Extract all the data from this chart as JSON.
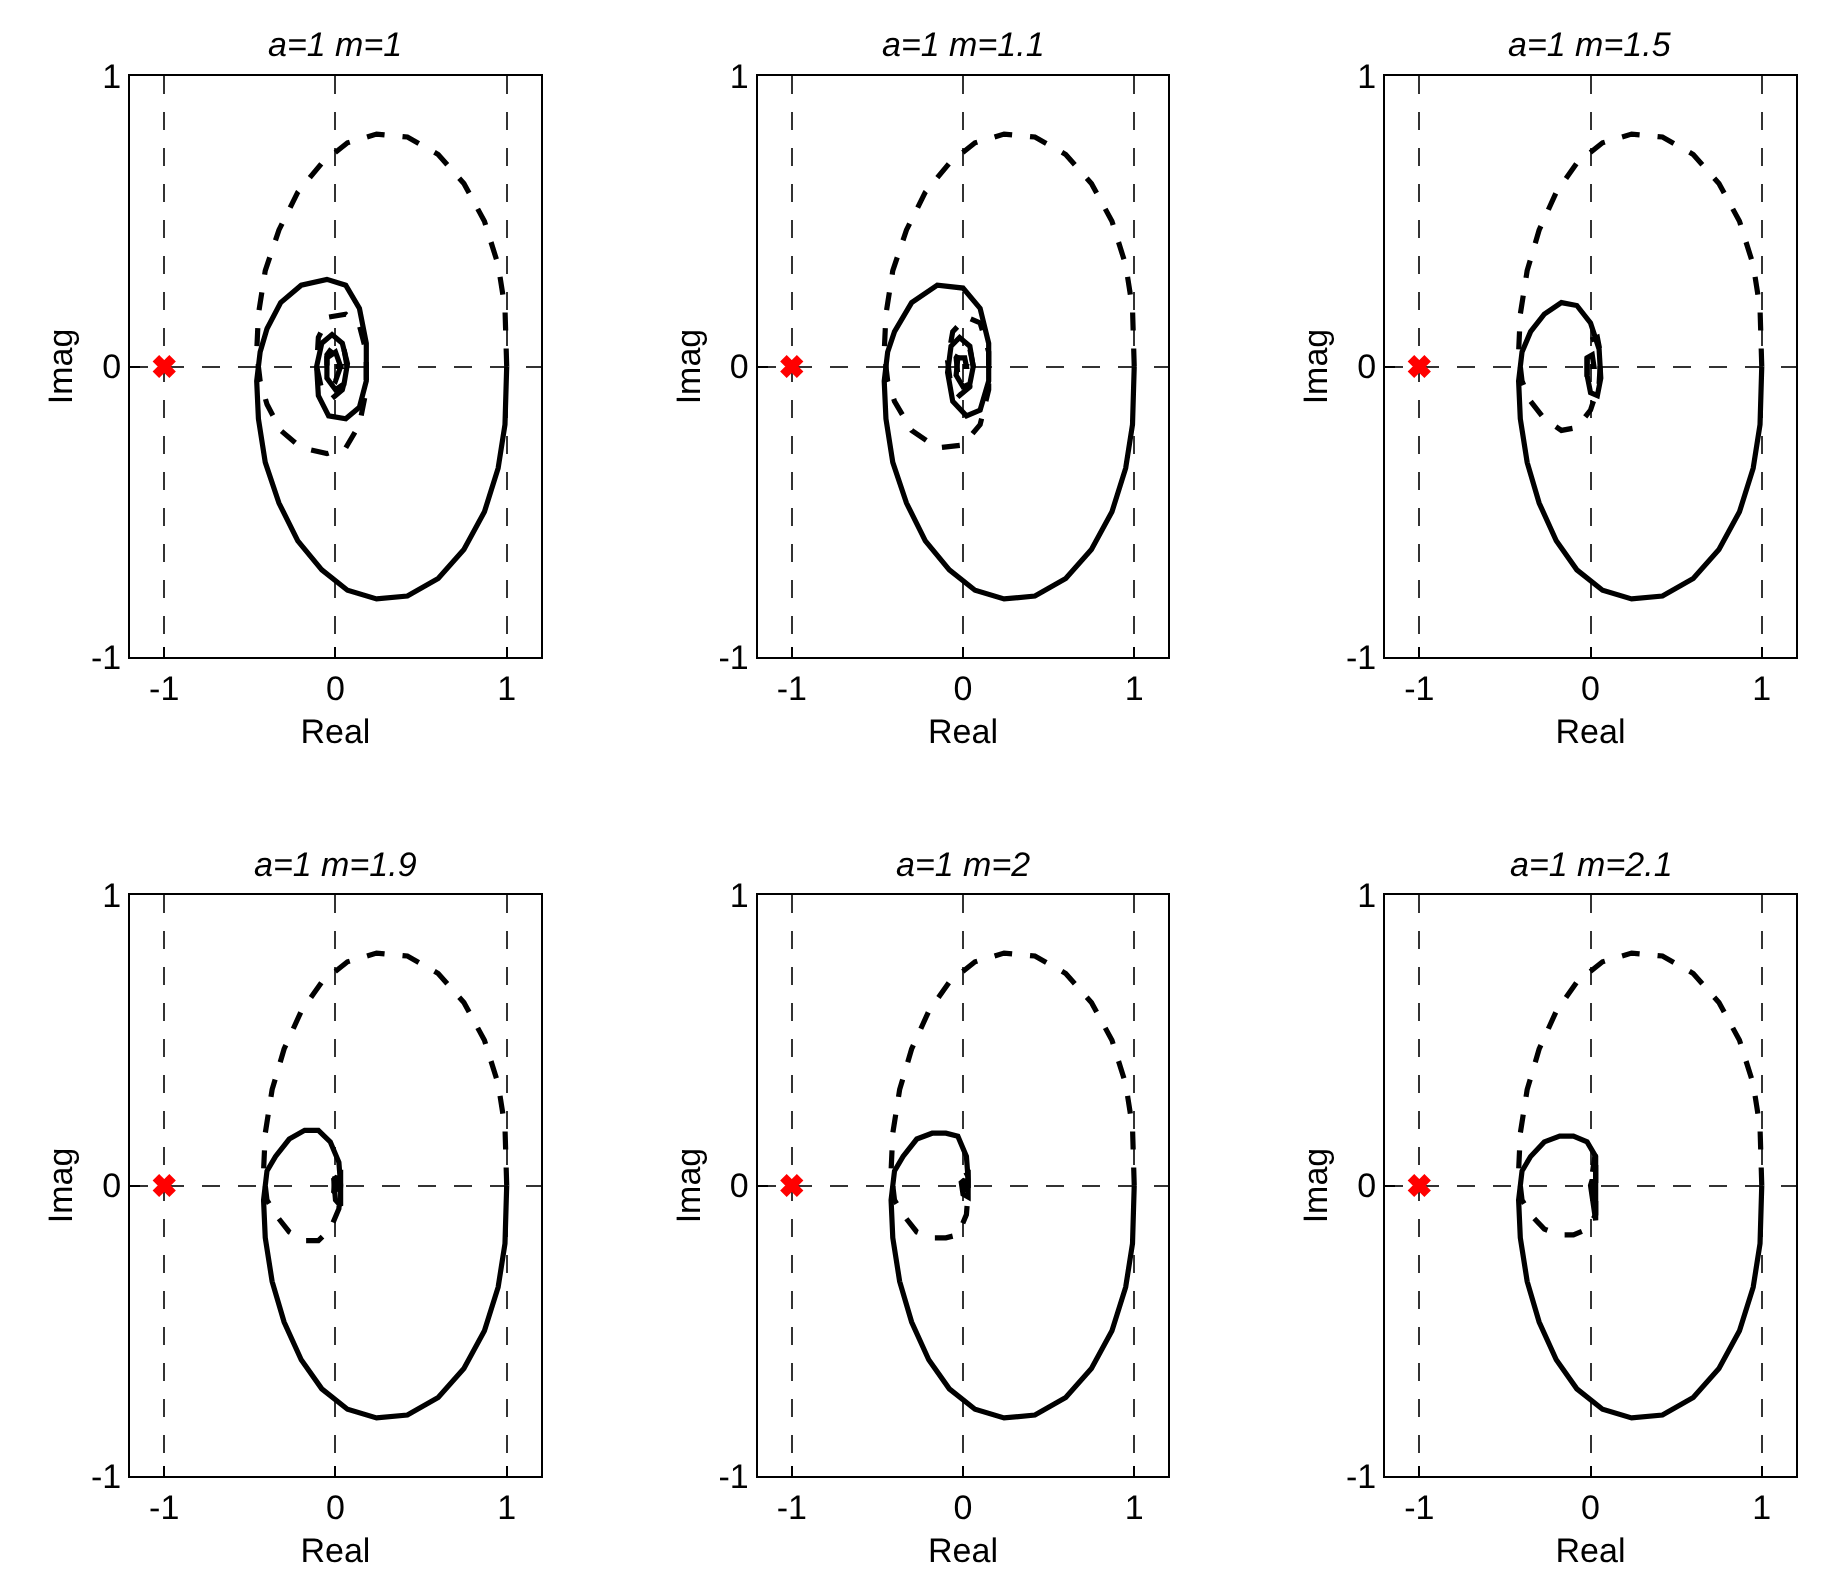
{
  "chart_data": [
    {
      "type": "line",
      "title": "a=1 m=1",
      "xlabel": "Real",
      "ylabel": "Imag",
      "xlim": [
        -1.2,
        1.2
      ],
      "ylim": [
        -1,
        1
      ],
      "xticks": [
        -1,
        0,
        1
      ],
      "yticks": [
        -1,
        0,
        1
      ],
      "grid": true,
      "series": [
        {
          "color": "#000000",
          "line_style": "solid",
          "x": [
            1,
            0.99,
            0.95,
            0.87,
            0.75,
            0.6,
            0.42,
            0.24,
            0.07,
            -0.08,
            -0.22,
            -0.33,
            -0.41,
            -0.45,
            -0.46,
            -0.44,
            -0.4,
            -0.32,
            -0.2,
            -0.05,
            0.06,
            0.14,
            0.18,
            0.18,
            0.14,
            0.06,
            -0.04,
            -0.1,
            -0.11,
            -0.08,
            -0.02,
            0.04,
            0.07,
            0.05,
            0,
            -0.05,
            -0.05,
            0,
            0.03,
            0
          ],
          "values": [
            0,
            -0.2,
            -0.35,
            -0.5,
            -0.63,
            -0.73,
            -0.79,
            -0.8,
            -0.77,
            -0.7,
            -0.6,
            -0.47,
            -0.33,
            -0.18,
            -0.05,
            0.05,
            0.13,
            0.22,
            0.28,
            0.3,
            0.28,
            0.2,
            0.08,
            -0.05,
            -0.14,
            -0.18,
            -0.17,
            -0.1,
            0,
            0.08,
            0.11,
            0.08,
            0.01,
            -0.06,
            -0.08,
            -0.04,
            0.03,
            0.05,
            0,
            0
          ]
        },
        {
          "color": "#000000",
          "line_style": "dashed",
          "x": [
            1,
            0.99,
            0.95,
            0.87,
            0.75,
            0.6,
            0.42,
            0.24,
            0.07,
            -0.08,
            -0.22,
            -0.33,
            -0.41,
            -0.45,
            -0.46,
            -0.44,
            -0.4,
            -0.32,
            -0.2,
            -0.05,
            0.06,
            0.14,
            0.18,
            0.18,
            0.14,
            0.06,
            -0.04,
            -0.1,
            -0.11,
            -0.08,
            -0.02,
            0.04,
            0.07,
            0.05,
            0,
            -0.05,
            -0.05,
            0,
            0.03,
            0
          ],
          "values": [
            0,
            0.2,
            0.35,
            0.5,
            0.63,
            0.73,
            0.79,
            0.8,
            0.77,
            0.7,
            0.6,
            0.47,
            0.33,
            0.18,
            0.05,
            -0.05,
            -0.13,
            -0.22,
            -0.28,
            -0.3,
            -0.28,
            -0.2,
            -0.08,
            0.05,
            0.14,
            0.18,
            0.17,
            0.1,
            0,
            -0.08,
            -0.11,
            -0.08,
            -0.01,
            0.06,
            0.08,
            0.04,
            -0.03,
            -0.05,
            0,
            0
          ]
        },
        {
          "type": "scatter",
          "marker": "cross",
          "color": "#ff0000",
          "x": [
            -1
          ],
          "values": [
            0
          ]
        }
      ]
    },
    {
      "type": "line",
      "title": "a=1 m=1.1",
      "xlabel": "Real",
      "ylabel": "Imag",
      "xlim": [
        -1.2,
        1.2
      ],
      "ylim": [
        -1,
        1
      ],
      "xticks": [
        -1,
        0,
        1
      ],
      "yticks": [
        -1,
        0,
        1
      ],
      "grid": true,
      "series": [
        {
          "color": "#000000",
          "line_style": "solid",
          "x": [
            1,
            0.99,
            0.95,
            0.87,
            0.75,
            0.6,
            0.42,
            0.24,
            0.07,
            -0.08,
            -0.22,
            -0.33,
            -0.41,
            -0.45,
            -0.46,
            -0.44,
            -0.4,
            -0.3,
            -0.15,
            0,
            0.1,
            0.15,
            0.15,
            0.1,
            0.02,
            -0.06,
            -0.09,
            -0.07,
            -0.02,
            0.04,
            0.06,
            0.04,
            0,
            -0.04,
            -0.03,
            0.01,
            0.02,
            0
          ],
          "values": [
            0,
            -0.2,
            -0.35,
            -0.5,
            -0.63,
            -0.73,
            -0.79,
            -0.8,
            -0.77,
            -0.7,
            -0.6,
            -0.47,
            -0.33,
            -0.18,
            -0.05,
            0.05,
            0.12,
            0.22,
            0.28,
            0.27,
            0.2,
            0.08,
            -0.05,
            -0.15,
            -0.17,
            -0.12,
            -0.02,
            0.07,
            0.1,
            0.07,
            0,
            -0.06,
            -0.07,
            -0.03,
            0.03,
            0.03,
            0,
            0
          ]
        },
        {
          "color": "#000000",
          "line_style": "dashed",
          "x": [
            1,
            0.99,
            0.95,
            0.87,
            0.75,
            0.6,
            0.42,
            0.24,
            0.07,
            -0.08,
            -0.22,
            -0.33,
            -0.41,
            -0.45,
            -0.46,
            -0.44,
            -0.4,
            -0.3,
            -0.15,
            0,
            0.1,
            0.15,
            0.15,
            0.1,
            0.02,
            -0.06,
            -0.09,
            -0.07,
            -0.02,
            0.04,
            0.06,
            0.04,
            0,
            -0.04,
            -0.03,
            0.01,
            0.02,
            0
          ],
          "values": [
            0,
            0.2,
            0.35,
            0.5,
            0.63,
            0.73,
            0.79,
            0.8,
            0.77,
            0.7,
            0.6,
            0.47,
            0.33,
            0.18,
            0.05,
            -0.05,
            -0.12,
            -0.22,
            -0.28,
            -0.27,
            -0.2,
            -0.08,
            0.05,
            0.15,
            0.17,
            0.12,
            0.02,
            -0.07,
            -0.1,
            -0.07,
            0,
            0.06,
            0.07,
            0.03,
            -0.03,
            -0.03,
            0,
            0
          ]
        },
        {
          "type": "scatter",
          "marker": "cross",
          "color": "#ff0000",
          "x": [
            -1
          ],
          "values": [
            0
          ]
        }
      ]
    },
    {
      "type": "line",
      "title": "a=1 m=1.5",
      "xlabel": "Real",
      "ylabel": "Imag",
      "xlim": [
        -1.2,
        1.2
      ],
      "ylim": [
        -1,
        1
      ],
      "xticks": [
        -1,
        0,
        1
      ],
      "yticks": [
        -1,
        0,
        1
      ],
      "grid": true,
      "series": [
        {
          "color": "#000000",
          "line_style": "solid",
          "x": [
            1,
            0.99,
            0.95,
            0.87,
            0.75,
            0.6,
            0.42,
            0.24,
            0.07,
            -0.08,
            -0.2,
            -0.3,
            -0.37,
            -0.41,
            -0.42,
            -0.4,
            -0.35,
            -0.27,
            -0.17,
            -0.08,
            0,
            0.05,
            0.06,
            0.04,
            0,
            -0.02,
            -0.02,
            0.01,
            0.02,
            0
          ],
          "values": [
            0,
            -0.2,
            -0.35,
            -0.5,
            -0.63,
            -0.73,
            -0.79,
            -0.8,
            -0.77,
            -0.7,
            -0.6,
            -0.47,
            -0.33,
            -0.18,
            -0.05,
            0.05,
            0.12,
            0.18,
            0.22,
            0.21,
            0.15,
            0.06,
            -0.04,
            -0.1,
            -0.09,
            -0.03,
            0.03,
            0.04,
            0,
            0
          ]
        },
        {
          "color": "#000000",
          "line_style": "dashed",
          "x": [
            1,
            0.99,
            0.95,
            0.87,
            0.75,
            0.6,
            0.42,
            0.24,
            0.07,
            -0.08,
            -0.2,
            -0.3,
            -0.37,
            -0.41,
            -0.42,
            -0.4,
            -0.35,
            -0.27,
            -0.17,
            -0.08,
            0,
            0.05,
            0.06,
            0.04,
            0,
            -0.02,
            -0.02,
            0.01,
            0.02,
            0
          ],
          "values": [
            0,
            0.2,
            0.35,
            0.5,
            0.63,
            0.73,
            0.79,
            0.8,
            0.77,
            0.7,
            0.6,
            0.47,
            0.33,
            0.18,
            0.05,
            -0.05,
            -0.12,
            -0.18,
            -0.22,
            -0.21,
            -0.15,
            -0.06,
            0.04,
            0.1,
            0.09,
            0.03,
            -0.03,
            -0.04,
            0,
            0
          ]
        },
        {
          "type": "scatter",
          "marker": "cross",
          "color": "#ff0000",
          "x": [
            -1
          ],
          "values": [
            0
          ]
        }
      ]
    },
    {
      "type": "line",
      "title": "a=1 m=1.9",
      "xlabel": "Real",
      "ylabel": "Imag",
      "xlim": [
        -1.2,
        1.2
      ],
      "ylim": [
        -1,
        1
      ],
      "xticks": [
        -1,
        0,
        1
      ],
      "yticks": [
        -1,
        0,
        1
      ],
      "grid": true,
      "series": [
        {
          "color": "#000000",
          "line_style": "solid",
          "x": [
            1,
            0.99,
            0.95,
            0.87,
            0.75,
            0.6,
            0.42,
            0.24,
            0.07,
            -0.08,
            -0.2,
            -0.3,
            -0.37,
            -0.41,
            -0.42,
            -0.4,
            -0.35,
            -0.27,
            -0.18,
            -0.1,
            -0.03,
            0.02,
            0.03,
            0.03,
            0,
            -0.01,
            0.01,
            0.02
          ],
          "values": [
            0,
            -0.2,
            -0.35,
            -0.5,
            -0.63,
            -0.73,
            -0.79,
            -0.8,
            -0.77,
            -0.7,
            -0.6,
            -0.47,
            -0.33,
            -0.18,
            -0.05,
            0.05,
            0.1,
            0.16,
            0.19,
            0.19,
            0.15,
            0.08,
            0,
            -0.07,
            -0.05,
            0.02,
            0.03,
            -0.02
          ]
        },
        {
          "color": "#000000",
          "line_style": "dashed",
          "x": [
            1,
            0.99,
            0.95,
            0.87,
            0.75,
            0.6,
            0.42,
            0.24,
            0.07,
            -0.08,
            -0.2,
            -0.3,
            -0.37,
            -0.41,
            -0.42,
            -0.4,
            -0.35,
            -0.27,
            -0.18,
            -0.1,
            -0.03,
            0.02,
            0.03,
            0.03,
            0,
            -0.01,
            0.01,
            0.02
          ],
          "values": [
            0,
            0.2,
            0.35,
            0.5,
            0.63,
            0.73,
            0.79,
            0.8,
            0.77,
            0.7,
            0.6,
            0.47,
            0.33,
            0.18,
            0.05,
            -0.05,
            -0.1,
            -0.16,
            -0.19,
            -0.19,
            -0.15,
            -0.08,
            0,
            0.07,
            0.05,
            -0.02,
            -0.03,
            0.02
          ]
        },
        {
          "type": "scatter",
          "marker": "cross",
          "color": "#ff0000",
          "x": [
            -1
          ],
          "values": [
            0
          ]
        }
      ]
    },
    {
      "type": "line",
      "title": "a=1 m=2",
      "xlabel": "Real",
      "ylabel": "Imag",
      "xlim": [
        -1.2,
        1.2
      ],
      "ylim": [
        -1,
        1
      ],
      "xticks": [
        -1,
        0,
        1
      ],
      "yticks": [
        -1,
        0,
        1
      ],
      "grid": true,
      "series": [
        {
          "color": "#000000",
          "line_style": "solid",
          "x": [
            1,
            0.99,
            0.95,
            0.87,
            0.75,
            0.6,
            0.42,
            0.24,
            0.07,
            -0.08,
            -0.2,
            -0.3,
            -0.37,
            -0.41,
            -0.42,
            -0.4,
            -0.35,
            -0.27,
            -0.18,
            -0.1,
            -0.03,
            0.02,
            0.03,
            0.03,
            0,
            -0.01,
            0.01,
            0.02
          ],
          "values": [
            0,
            -0.2,
            -0.35,
            -0.5,
            -0.63,
            -0.73,
            -0.79,
            -0.8,
            -0.77,
            -0.7,
            -0.6,
            -0.47,
            -0.33,
            -0.18,
            -0.05,
            0.05,
            0.1,
            0.16,
            0.18,
            0.18,
            0.17,
            0.1,
            0.02,
            -0.04,
            -0.03,
            0.01,
            0.02,
            -0.02
          ]
        },
        {
          "color": "#000000",
          "line_style": "dashed",
          "x": [
            1,
            0.99,
            0.95,
            0.87,
            0.75,
            0.6,
            0.42,
            0.24,
            0.07,
            -0.08,
            -0.2,
            -0.3,
            -0.37,
            -0.41,
            -0.42,
            -0.4,
            -0.35,
            -0.27,
            -0.18,
            -0.1,
            -0.03,
            0.02,
            0.03,
            0.03,
            0,
            -0.01,
            0.01,
            0.02
          ],
          "values": [
            0,
            0.2,
            0.35,
            0.5,
            0.63,
            0.73,
            0.79,
            0.8,
            0.77,
            0.7,
            0.6,
            0.47,
            0.33,
            0.18,
            0.05,
            -0.05,
            -0.1,
            -0.16,
            -0.18,
            -0.18,
            -0.17,
            -0.1,
            -0.02,
            0.04,
            0.03,
            -0.01,
            -0.02,
            0.02
          ]
        },
        {
          "type": "scatter",
          "marker": "cross",
          "color": "#ff0000",
          "x": [
            -1
          ],
          "values": [
            0
          ]
        }
      ]
    },
    {
      "type": "line",
      "title": "a=1 m=2.1",
      "xlabel": "Real",
      "ylabel": "Imag",
      "xlim": [
        -1.2,
        1.2
      ],
      "ylim": [
        -1,
        1
      ],
      "xticks": [
        -1,
        0,
        1
      ],
      "yticks": [
        -1,
        0,
        1
      ],
      "grid": true,
      "series": [
        {
          "color": "#000000",
          "line_style": "solid",
          "x": [
            1,
            0.99,
            0.95,
            0.87,
            0.75,
            0.6,
            0.42,
            0.24,
            0.07,
            -0.08,
            -0.2,
            -0.3,
            -0.37,
            -0.41,
            -0.42,
            -0.4,
            -0.35,
            -0.27,
            -0.18,
            -0.1,
            -0.02,
            0.03,
            0.03,
            0.03,
            0.01,
            0,
            0.01,
            0.02
          ],
          "values": [
            0,
            -0.2,
            -0.35,
            -0.5,
            -0.63,
            -0.73,
            -0.79,
            -0.8,
            -0.77,
            -0.7,
            -0.6,
            -0.47,
            -0.33,
            -0.18,
            -0.05,
            0.05,
            0.1,
            0.15,
            0.17,
            0.17,
            0.15,
            0.1,
            0,
            -0.12,
            -0.04,
            0,
            0.02,
            0
          ]
        },
        {
          "color": "#000000",
          "line_style": "dashed",
          "x": [
            1,
            0.99,
            0.95,
            0.87,
            0.75,
            0.6,
            0.42,
            0.24,
            0.07,
            -0.08,
            -0.2,
            -0.3,
            -0.37,
            -0.41,
            -0.42,
            -0.4,
            -0.35,
            -0.27,
            -0.18,
            -0.1,
            -0.02,
            0.03,
            0.03,
            0.03,
            0.01,
            0,
            0.01,
            0.02
          ],
          "values": [
            0,
            0.2,
            0.35,
            0.5,
            0.63,
            0.73,
            0.79,
            0.8,
            0.77,
            0.7,
            0.6,
            0.47,
            0.33,
            0.18,
            0.05,
            -0.05,
            -0.1,
            -0.15,
            -0.17,
            -0.17,
            -0.15,
            -0.1,
            0,
            0.12,
            0.04,
            0,
            -0.02,
            0
          ]
        },
        {
          "type": "scatter",
          "marker": "cross",
          "color": "#ff0000",
          "x": [
            -1
          ],
          "values": [
            0
          ]
        }
      ]
    }
  ]
}
